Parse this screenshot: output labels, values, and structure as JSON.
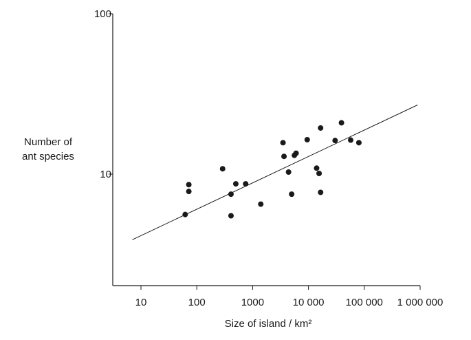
{
  "chart_data": {
    "type": "scatter",
    "title": "",
    "xlabel": "Size of island / km²",
    "ylabel_line1": "Number of",
    "ylabel_line2": "ant species",
    "x_scale": "log",
    "y_scale": "log",
    "xlim": [
      3,
      1000000
    ],
    "ylim": [
      3.6,
      100
    ],
    "x_ticks": [
      {
        "value": 10,
        "label": "10"
      },
      {
        "value": 100,
        "label": "100"
      },
      {
        "value": 1000,
        "label": "1000"
      },
      {
        "value": 10000,
        "label": "10 000"
      },
      {
        "value": 100000,
        "label": "100 000"
      },
      {
        "value": 1000000,
        "label": "1 000 000"
      }
    ],
    "y_ticks": [
      {
        "value": 10,
        "label": "10"
      },
      {
        "value": 100,
        "label": "100"
      }
    ],
    "grid": false,
    "legend": "none",
    "points": [
      {
        "x": 62,
        "y": 5.6
      },
      {
        "x": 72,
        "y": 8.6
      },
      {
        "x": 72,
        "y": 7.8
      },
      {
        "x": 290,
        "y": 10.8
      },
      {
        "x": 410,
        "y": 7.5
      },
      {
        "x": 410,
        "y": 5.5
      },
      {
        "x": 500,
        "y": 8.7
      },
      {
        "x": 750,
        "y": 8.7
      },
      {
        "x": 1400,
        "y": 6.5
      },
      {
        "x": 3500,
        "y": 15.7
      },
      {
        "x": 3650,
        "y": 12.9
      },
      {
        "x": 4400,
        "y": 10.3
      },
      {
        "x": 5000,
        "y": 7.5
      },
      {
        "x": 5600,
        "y": 13.1
      },
      {
        "x": 6000,
        "y": 13.5
      },
      {
        "x": 9500,
        "y": 16.4
      },
      {
        "x": 14000,
        "y": 10.9
      },
      {
        "x": 15500,
        "y": 10.1
      },
      {
        "x": 16500,
        "y": 19.4
      },
      {
        "x": 16500,
        "y": 7.7
      },
      {
        "x": 30000,
        "y": 16.2
      },
      {
        "x": 39000,
        "y": 20.9
      },
      {
        "x": 57000,
        "y": 16.3
      },
      {
        "x": 80000,
        "y": 15.7
      }
    ],
    "trendline": {
      "x": [
        7,
        900000
      ],
      "y": [
        3.9,
        27
      ]
    }
  }
}
